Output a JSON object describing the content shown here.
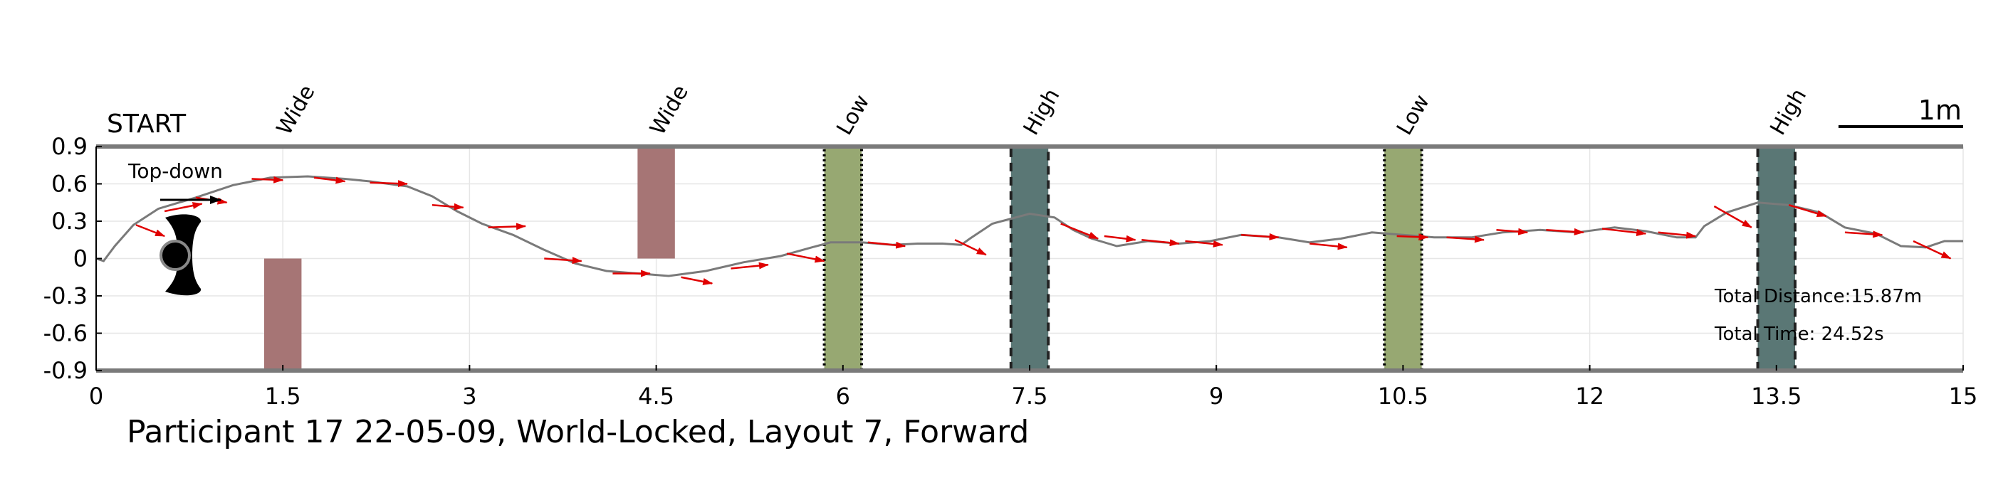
{
  "chart_data": {
    "type": "line",
    "title": "Participant 17 22-05-09, World-Locked, Layout 7, Forward",
    "xlim": [
      0,
      15
    ],
    "ylim": [
      -0.9,
      0.9
    ],
    "x_ticks": [
      0,
      1.5,
      3,
      4.5,
      6,
      7.5,
      9,
      10.5,
      12,
      13.5,
      15
    ],
    "x_tick_labels": [
      "0",
      "1.5",
      "3",
      "4.5",
      "6",
      "7.5",
      "9",
      "10.5",
      "12",
      "13.5",
      "15"
    ],
    "y_ticks": [
      0.9,
      0.6,
      0.3,
      0,
      -0.3,
      -0.6,
      -0.9
    ],
    "y_tick_labels": [
      "0.9",
      "0.6",
      "0.3",
      "0",
      "-0.3",
      "-0.6",
      "-0.9"
    ],
    "grid": true,
    "start_label": "START",
    "scale_bar_label": "1m",
    "top_down_label": "Top-down",
    "total_distance": "Total Distance:15.87m",
    "total_time": "Total Time: 24.52s",
    "obstacles": [
      {
        "label": "Wide",
        "kind": "wide",
        "x": [
          1.35,
          1.65
        ],
        "y": [
          -0.9,
          0
        ]
      },
      {
        "label": "Wide",
        "kind": "wide",
        "x": [
          4.35,
          4.65
        ],
        "y": [
          0,
          0.9
        ]
      },
      {
        "label": "Low",
        "kind": "low",
        "x": [
          5.85,
          6.15
        ],
        "y": [
          -0.9,
          0.9
        ]
      },
      {
        "label": "High",
        "kind": "high",
        "x": [
          7.35,
          7.65
        ],
        "y": [
          -0.9,
          0.9
        ]
      },
      {
        "label": "Low",
        "kind": "low",
        "x": [
          10.35,
          10.65
        ],
        "y": [
          -0.9,
          0.9
        ]
      },
      {
        "label": "High",
        "kind": "high",
        "x": [
          13.35,
          13.65
        ],
        "y": [
          -0.9,
          0.9
        ]
      }
    ],
    "obstacle_colors": {
      "wide": "#a67575",
      "low": "#97a872",
      "high": "#5a7775"
    },
    "path_color": "#7a7a7a",
    "arrow_color": "#e00000",
    "path": [
      [
        0.0,
        0.0
      ],
      [
        0.06,
        -0.02
      ],
      [
        0.15,
        0.1
      ],
      [
        0.3,
        0.27
      ],
      [
        0.5,
        0.4
      ],
      [
        0.8,
        0.49
      ],
      [
        1.1,
        0.59
      ],
      [
        1.4,
        0.65
      ],
      [
        1.7,
        0.66
      ],
      [
        2.0,
        0.64
      ],
      [
        2.2,
        0.62
      ],
      [
        2.5,
        0.58
      ],
      [
        2.7,
        0.5
      ],
      [
        2.9,
        0.38
      ],
      [
        3.1,
        0.28
      ],
      [
        3.35,
        0.19
      ],
      [
        3.6,
        0.07
      ],
      [
        3.85,
        -0.04
      ],
      [
        4.1,
        -0.1
      ],
      [
        4.35,
        -0.12
      ],
      [
        4.6,
        -0.14
      ],
      [
        4.9,
        -0.1
      ],
      [
        5.2,
        -0.03
      ],
      [
        5.5,
        0.02
      ],
      [
        5.75,
        0.09
      ],
      [
        5.9,
        0.13
      ],
      [
        6.15,
        0.13
      ],
      [
        6.4,
        0.11
      ],
      [
        6.6,
        0.12
      ],
      [
        6.8,
        0.12
      ],
      [
        6.95,
        0.11
      ],
      [
        7.02,
        0.16
      ],
      [
        7.2,
        0.28
      ],
      [
        7.5,
        0.36
      ],
      [
        7.7,
        0.33
      ],
      [
        7.85,
        0.23
      ],
      [
        8.0,
        0.16
      ],
      [
        8.2,
        0.1
      ],
      [
        8.45,
        0.14
      ],
      [
        8.7,
        0.12
      ],
      [
        8.95,
        0.14
      ],
      [
        9.2,
        0.19
      ],
      [
        9.5,
        0.17
      ],
      [
        9.75,
        0.13
      ],
      [
        10.0,
        0.16
      ],
      [
        10.25,
        0.21
      ],
      [
        10.5,
        0.19
      ],
      [
        10.75,
        0.17
      ],
      [
        11.05,
        0.17
      ],
      [
        11.3,
        0.21
      ],
      [
        11.6,
        0.23
      ],
      [
        11.9,
        0.21
      ],
      [
        12.2,
        0.25
      ],
      [
        12.45,
        0.22
      ],
      [
        12.7,
        0.17
      ],
      [
        12.85,
        0.17
      ],
      [
        12.92,
        0.26
      ],
      [
        13.1,
        0.37
      ],
      [
        13.35,
        0.45
      ],
      [
        13.6,
        0.43
      ],
      [
        13.85,
        0.37
      ],
      [
        14.05,
        0.25
      ],
      [
        14.3,
        0.2
      ],
      [
        14.5,
        0.1
      ],
      [
        14.7,
        0.09
      ],
      [
        14.85,
        0.14
      ],
      [
        15.0,
        0.14
      ]
    ],
    "arrows": [
      [
        0.32,
        0.27,
        0.55,
        0.18
      ],
      [
        0.55,
        0.38,
        0.85,
        0.44
      ],
      [
        0.8,
        0.49,
        1.05,
        0.45
      ],
      [
        1.25,
        0.64,
        1.5,
        0.63
      ],
      [
        1.75,
        0.65,
        2.0,
        0.62
      ],
      [
        2.2,
        0.61,
        2.5,
        0.6
      ],
      [
        2.7,
        0.43,
        2.95,
        0.41
      ],
      [
        3.15,
        0.25,
        3.45,
        0.26
      ],
      [
        3.6,
        0.0,
        3.9,
        -0.02
      ],
      [
        4.15,
        -0.12,
        4.45,
        -0.12
      ],
      [
        4.7,
        -0.15,
        4.95,
        -0.2
      ],
      [
        5.1,
        -0.08,
        5.4,
        -0.05
      ],
      [
        5.55,
        0.04,
        5.85,
        -0.02
      ],
      [
        6.2,
        0.13,
        6.5,
        0.1
      ],
      [
        6.9,
        0.15,
        7.15,
        0.03
      ],
      [
        7.75,
        0.28,
        8.05,
        0.16
      ],
      [
        8.1,
        0.18,
        8.35,
        0.15
      ],
      [
        8.4,
        0.15,
        8.7,
        0.12
      ],
      [
        8.75,
        0.14,
        9.05,
        0.11
      ],
      [
        9.2,
        0.19,
        9.5,
        0.17
      ],
      [
        9.75,
        0.12,
        10.05,
        0.09
      ],
      [
        10.45,
        0.18,
        10.7,
        0.17
      ],
      [
        10.85,
        0.17,
        11.15,
        0.15
      ],
      [
        11.25,
        0.23,
        11.5,
        0.21
      ],
      [
        11.65,
        0.23,
        11.95,
        0.21
      ],
      [
        12.1,
        0.24,
        12.45,
        0.2
      ],
      [
        12.55,
        0.21,
        12.85,
        0.18
      ],
      [
        13.0,
        0.42,
        13.3,
        0.25
      ],
      [
        13.6,
        0.43,
        13.9,
        0.34
      ],
      [
        14.05,
        0.21,
        14.35,
        0.19
      ],
      [
        14.6,
        0.14,
        14.9,
        0.0
      ]
    ]
  }
}
